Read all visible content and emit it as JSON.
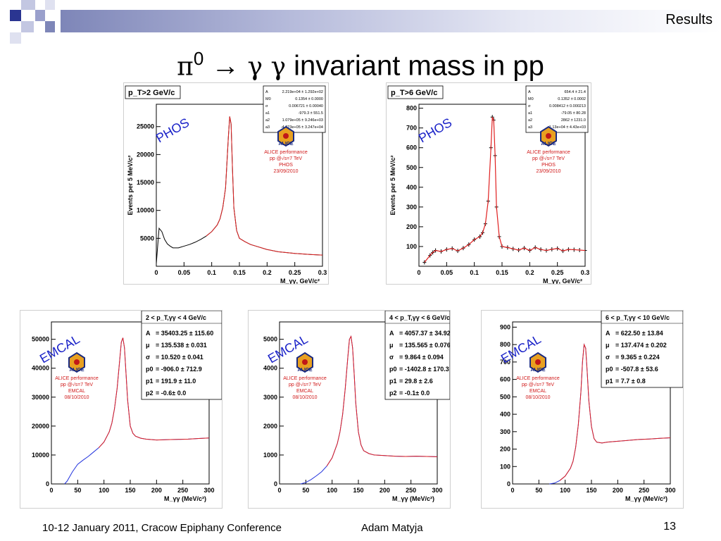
{
  "header": {
    "section": "Results"
  },
  "title": {
    "particle": "π",
    "superscript": "0",
    "arrow": " → ",
    "gamma1": "γ",
    "gamma2": " γ",
    "rest": " invariant mass in pp"
  },
  "footer": {
    "conference": "10-12 January 2011, Cracow Epiphany Conference",
    "author": "Adam Matyja",
    "page": "13"
  },
  "chart_data": [
    {
      "type": "line",
      "detector": "PHOS",
      "cut": "p_T>2 GeV/c",
      "xlabel": "M_γγ, GeV/c²",
      "ylabel": "Events per 5 MeV/c²",
      "xlim": [
        0,
        0.3
      ],
      "ylim": [
        0,
        29000
      ],
      "xticks": [
        "0",
        "0.05",
        "0.1",
        "0.15",
        "0.2",
        "0.25",
        "0.3"
      ],
      "yticks": [
        5000,
        10000,
        15000,
        20000,
        25000
      ],
      "stats": [
        [
          "A",
          "2.219e+04 ± 1.292e+02"
        ],
        [
          "M0",
          "0.1354 ± 0.0000"
        ],
        [
          "σ",
          "0.006721 ± 0.00040"
        ],
        [
          "a1",
          "-979.3 ± 551.5"
        ],
        [
          "a2",
          "1.079e+05 ± 9.246e+03"
        ],
        [
          "a3",
          "-4.223e+05 ± 3.247e+04"
        ]
      ],
      "performance": [
        "ALICE performance",
        "pp @√s=7 TeV",
        "PHOS",
        "23/09/2010"
      ],
      "x": [
        0,
        0.005,
        0.01,
        0.015,
        0.02,
        0.025,
        0.03,
        0.04,
        0.05,
        0.06,
        0.07,
        0.08,
        0.09,
        0.1,
        0.11,
        0.115,
        0.12,
        0.125,
        0.13,
        0.1325,
        0.135,
        0.1375,
        0.14,
        0.145,
        0.15,
        0.16,
        0.17,
        0.18,
        0.2,
        0.22,
        0.25,
        0.28,
        0.3
      ],
      "y": [
        500,
        6800,
        6200,
        4800,
        4000,
        3600,
        3300,
        3300,
        3600,
        3900,
        4300,
        4800,
        5400,
        6200,
        7400,
        8500,
        10500,
        14000,
        23000,
        26800,
        25500,
        17500,
        10500,
        6400,
        5000,
        4400,
        3900,
        3600,
        3000,
        2600,
        2300,
        2100,
        2000
      ]
    },
    {
      "type": "scatter",
      "detector": "PHOS",
      "cut": "p_T>6 GeV/c",
      "xlabel": "M_γγ, GeV/c²",
      "ylabel": "Events per 5 MeV/c²",
      "xlim": [
        0,
        0.3
      ],
      "ylim": [
        0,
        820
      ],
      "xticks": [
        "0",
        "0.05",
        "0.1",
        "0.15",
        "0.2",
        "0.25",
        "0.3"
      ],
      "yticks": [
        100,
        200,
        300,
        400,
        500,
        600,
        700,
        800
      ],
      "stats": [
        [
          "A",
          "654.4 ± 21.4"
        ],
        [
          "M0",
          "0.1352 ± 0.0002"
        ],
        [
          "σ",
          "0.008412 ± 0.000213"
        ],
        [
          "a1",
          "-79.05 ± 80.28"
        ],
        [
          "a2",
          "2862 ± 1231.0"
        ],
        [
          "a3",
          "-1.13e+04 ± 4.43e+03"
        ]
      ],
      "performance": [
        "ALICE performance",
        "pp @√s=7 TeV",
        "PHOS",
        "23/09/2010"
      ],
      "x": [
        0.01,
        0.02,
        0.025,
        0.03,
        0.04,
        0.05,
        0.06,
        0.07,
        0.08,
        0.09,
        0.1,
        0.11,
        0.115,
        0.12,
        0.125,
        0.13,
        0.1325,
        0.135,
        0.1375,
        0.14,
        0.145,
        0.15,
        0.16,
        0.17,
        0.18,
        0.19,
        0.2,
        0.21,
        0.22,
        0.23,
        0.24,
        0.25,
        0.26,
        0.27,
        0.28,
        0.29,
        0.3
      ],
      "y": [
        20,
        55,
        70,
        80,
        75,
        85,
        90,
        78,
        92,
        110,
        135,
        150,
        170,
        215,
        330,
        600,
        755,
        740,
        560,
        300,
        150,
        100,
        95,
        88,
        82,
        92,
        80,
        95,
        85,
        80,
        86,
        90,
        78,
        85,
        84,
        82,
        80
      ]
    },
    {
      "type": "line",
      "detector": "EMCAL",
      "cut": "2 < p_T,γγ < 4 GeV/c",
      "xlabel": "M_γγ (MeV/c²)",
      "ylabel": "",
      "xlim": [
        0,
        300
      ],
      "ylim": [
        0,
        56000
      ],
      "xticks": [
        "0",
        "50",
        "100",
        "150",
        "200",
        "250",
        "300"
      ],
      "yticks": [
        0,
        10000,
        20000,
        30000,
        40000,
        50000
      ],
      "stats": [
        [
          "A",
          "= 35403.25 ± 115.60"
        ],
        [
          "μ",
          "= 135.538 ± 0.031"
        ],
        [
          "σ",
          "= 10.520 ± 0.041"
        ],
        [
          "p0",
          "= -906.0 ± 712.9"
        ],
        [
          "p1",
          "= 191.9 ± 11.0"
        ],
        [
          "p2",
          "= -0.6± 0.0"
        ]
      ],
      "performance": [
        "ALICE performance",
        "pp @√s=7 TeV",
        "EMCAL",
        "08/10/2010"
      ],
      "x": [
        25,
        30,
        40,
        50,
        60,
        70,
        80,
        90,
        100,
        110,
        115,
        120,
        125,
        130,
        133,
        136,
        139,
        142,
        145,
        150,
        155,
        160,
        170,
        180,
        200,
        220,
        240,
        260,
        280,
        300
      ],
      "y": [
        0,
        1000,
        4200,
        6800,
        8200,
        9500,
        11000,
        12500,
        14500,
        18000,
        21000,
        26000,
        33000,
        43000,
        49000,
        50500,
        47000,
        38000,
        29000,
        20000,
        17500,
        16500,
        15800,
        15500,
        15200,
        15300,
        15400,
        15500,
        15700,
        15900
      ]
    },
    {
      "type": "line",
      "detector": "EMCAL",
      "cut": "4 < p_T,γγ < 6 GeV/c",
      "xlabel": "M_γγ (MeV/c²)",
      "ylabel": "",
      "xlim": [
        0,
        300
      ],
      "ylim": [
        0,
        5600
      ],
      "xticks": [
        "0",
        "50",
        "100",
        "150",
        "200",
        "250",
        "300"
      ],
      "yticks": [
        0,
        1000,
        2000,
        3000,
        4000,
        5000
      ],
      "stats": [
        [
          "A",
          "= 4057.37 ± 34.92"
        ],
        [
          "μ",
          "= 135.565 ± 0.076"
        ],
        [
          "σ",
          "= 9.864 ± 0.094"
        ],
        [
          "p0",
          "= -1402.8 ± 170.3"
        ],
        [
          "p1",
          "= 29.8 ± 2.6"
        ],
        [
          "p2",
          "= -0.1± 0.0"
        ]
      ],
      "performance": [
        "ALICE performance",
        "pp @√s=7 TeV",
        "EMCAL",
        "08/10/2010"
      ],
      "x": [
        40,
        50,
        60,
        70,
        80,
        90,
        100,
        110,
        115,
        120,
        125,
        130,
        133,
        136,
        139,
        142,
        145,
        150,
        155,
        160,
        170,
        180,
        200,
        220,
        240,
        260,
        280,
        300
      ],
      "y": [
        0,
        50,
        150,
        280,
        420,
        620,
        900,
        1400,
        1800,
        2400,
        3300,
        4400,
        5000,
        5100,
        4700,
        3800,
        2800,
        1800,
        1350,
        1150,
        1050,
        1000,
        980,
        960,
        950,
        960,
        950,
        940
      ]
    },
    {
      "type": "line",
      "detector": "EMCAL",
      "cut": "6 < p_T,γγ < 10 GeV/c",
      "xlabel": "M_γγ (MeV/c²)",
      "ylabel": "",
      "xlim": [
        0,
        300
      ],
      "ylim": [
        0,
        930
      ],
      "xticks": [
        "0",
        "50",
        "100",
        "150",
        "200",
        "250",
        "300"
      ],
      "yticks": [
        0,
        100,
        200,
        300,
        400,
        500,
        600,
        700,
        800,
        900
      ],
      "stats": [
        [
          "A",
          "= 622.50 ± 13.84"
        ],
        [
          "μ",
          "= 137.474 ± 0.202"
        ],
        [
          "σ",
          "= 9.365 ± 0.224"
        ],
        [
          "p0",
          "= -507.8 ± 53.6"
        ],
        [
          "p1",
          "= 7.7 ± 0.8"
        ]
      ],
      "performance": [
        "ALICE performance",
        "pp @√s=7 TeV",
        "EMCAL",
        "08/10/2010"
      ],
      "x": [
        70,
        80,
        90,
        100,
        110,
        115,
        120,
        125,
        130,
        133,
        136,
        139,
        142,
        145,
        150,
        155,
        160,
        170,
        180,
        200,
        220,
        240,
        260,
        280,
        300
      ],
      "y": [
        0,
        5,
        20,
        45,
        90,
        130,
        210,
        340,
        530,
        700,
        800,
        780,
        640,
        480,
        330,
        260,
        240,
        235,
        240,
        245,
        250,
        255,
        258,
        262,
        265
      ]
    }
  ]
}
